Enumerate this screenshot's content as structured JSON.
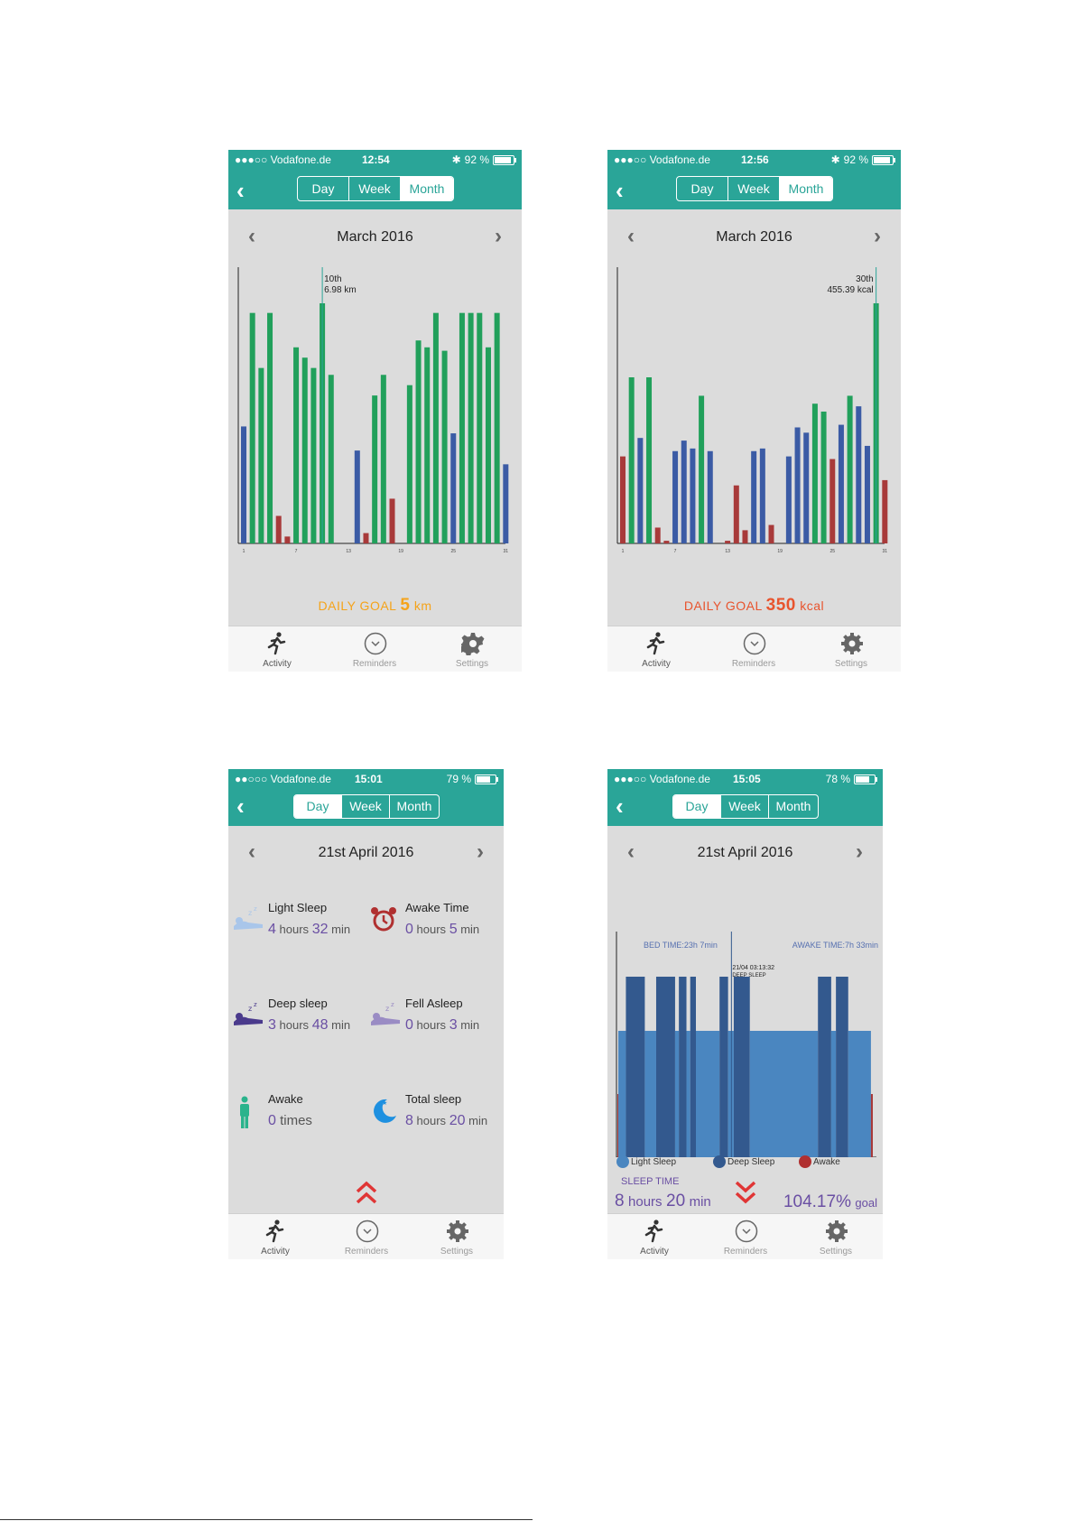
{
  "screens": [
    {
      "status": {
        "carrier": "●●●○○ Vodafone.de",
        "time": "12:54",
        "battery": "92 %",
        "battery_level": 0.92
      },
      "tabs": [
        "Day",
        "Week",
        "Month"
      ],
      "active_tab": "Month",
      "date": "March 2016",
      "tooltip": {
        "line1": "10th",
        "line2": "6.98 km"
      },
      "goal": {
        "label": "DAILY GOAL",
        "value": "5",
        "unit": "km"
      },
      "tabbar": [
        "Activity",
        "Reminders",
        "Settings"
      ]
    },
    {
      "status": {
        "carrier": "●●●○○ Vodafone.de",
        "time": "12:56",
        "battery": "92 %",
        "battery_level": 0.92
      },
      "tabs": [
        "Day",
        "Week",
        "Month"
      ],
      "active_tab": "Month",
      "date": "March 2016",
      "tooltip": {
        "line1": "30th",
        "line2": "455.39 kcal"
      },
      "goal": {
        "label": "DAILY GOAL",
        "value": "350",
        "unit": "kcal"
      },
      "tabbar": [
        "Activity",
        "Reminders",
        "Settings"
      ]
    },
    {
      "status": {
        "carrier": "●●○○○ Vodafone.de",
        "time": "15:01",
        "battery": "79 %",
        "battery_level": 0.79
      },
      "tabs": [
        "Day",
        "Week",
        "Month"
      ],
      "active_tab": "Day",
      "date": "21st April 2016",
      "items": [
        {
          "title": "Light Sleep",
          "n1": "4",
          "u1": "hours",
          "n2": "32",
          "u2": "min",
          "icon": "light-sleep-icon"
        },
        {
          "title": "Awake Time",
          "n1": "0",
          "u1": "hours",
          "n2": "5",
          "u2": "min",
          "icon": "alarm-clock-icon"
        },
        {
          "title": "Deep sleep",
          "n1": "3",
          "u1": "hours",
          "n2": "48",
          "u2": "min",
          "icon": "deep-sleep-icon"
        },
        {
          "title": "Fell Asleep",
          "n1": "0",
          "u1": "hours",
          "n2": "3",
          "u2": "min",
          "icon": "fell-asleep-icon"
        },
        {
          "title": "Awake",
          "n1": "0",
          "u1": "times",
          "n2": "",
          "u2": "",
          "icon": "standing-person-icon"
        },
        {
          "title": "Total sleep",
          "n1": "8",
          "u1": "hours",
          "n2": "20",
          "u2": "min",
          "icon": "moon-icon"
        }
      ],
      "expand_icon": "double-chevron-up-icon",
      "tabbar": [
        "Activity",
        "Reminders",
        "Settings"
      ]
    },
    {
      "status": {
        "carrier": "●●●○○ Vodafone.de",
        "time": "15:05",
        "battery": "78 %",
        "battery_level": 0.78
      },
      "tabs": [
        "Day",
        "Week",
        "Month"
      ],
      "active_tab": "Day",
      "date": "21st April 2016",
      "bed_time": "BED TIME:23h 7min",
      "awake_time": "AWAKE TIME:7h 33min",
      "tooltip": {
        "line1": "21/04 03:13:32",
        "line2": "DEEP SLEEP"
      },
      "legend": [
        "Light Sleep",
        "Deep Sleep",
        "Awake"
      ],
      "sleep_time_label": "SLEEP TIME",
      "sleep_hours": "8",
      "hours_unit": "hours",
      "sleep_min": "20",
      "min_unit": "min",
      "goal_pct": "104.17%",
      "goal_label": "goal",
      "collapse_icon": "double-chevron-down-icon",
      "tabbar": [
        "Activity",
        "Reminders",
        "Settings"
      ]
    }
  ],
  "colors": {
    "teal": "#2aa598",
    "green": "#21a05b",
    "blue": "#3b5ba5",
    "red": "#a83a3a",
    "orange": "#f5a31a",
    "goal_red": "#e8542e",
    "purple": "#6a4fa3",
    "light_sleep": "#4a86c0",
    "deep_sleep": "#33598e"
  },
  "chart_data": [
    {
      "type": "bar",
      "title": "",
      "x": [
        1,
        2,
        3,
        4,
        5,
        6,
        7,
        8,
        9,
        10,
        11,
        12,
        13,
        14,
        15,
        16,
        17,
        18,
        19,
        20,
        21,
        22,
        23,
        24,
        25,
        26,
        27,
        28,
        29,
        30,
        31
      ],
      "xticks": [
        "1",
        "7",
        "13",
        "19",
        "25",
        "31"
      ],
      "values": [
        3.4,
        6.7,
        5.1,
        6.7,
        0.8,
        0.2,
        5.7,
        5.4,
        5.1,
        6.98,
        4.9,
        0,
        0,
        2.7,
        0.3,
        4.3,
        4.9,
        1.3,
        0,
        4.6,
        5.9,
        5.7,
        6.7,
        5.6,
        3.2,
        6.7,
        6.7,
        6.7,
        5.7,
        6.7,
        2.3
      ],
      "bar_colors": [
        "blue",
        "green",
        "green",
        "green",
        "red",
        "red",
        "green",
        "green",
        "green",
        "green",
        "green",
        "none",
        "red",
        "blue",
        "red",
        "green",
        "green",
        "red",
        "none",
        "green",
        "green",
        "green",
        "green",
        "green",
        "blue",
        "green",
        "green",
        "green",
        "green",
        "green",
        "blue"
      ],
      "unit": "km",
      "goal": 5
    },
    {
      "type": "bar",
      "title": "",
      "x": [
        1,
        2,
        3,
        4,
        5,
        6,
        7,
        8,
        9,
        10,
        11,
        12,
        13,
        14,
        15,
        16,
        17,
        18,
        19,
        20,
        21,
        22,
        23,
        24,
        25,
        26,
        27,
        28,
        29,
        30,
        31
      ],
      "xticks": [
        "1",
        "7",
        "13",
        "19",
        "25",
        "31"
      ],
      "values": [
        165,
        315,
        200,
        315,
        30,
        5,
        175,
        195,
        180,
        280,
        175,
        0,
        5,
        110,
        25,
        175,
        180,
        35,
        0,
        165,
        220,
        210,
        265,
        250,
        160,
        225,
        280,
        260,
        185,
        455.39,
        120
      ],
      "bar_colors": [
        "red",
        "green",
        "blue",
        "green",
        "red",
        "red",
        "blue",
        "blue",
        "blue",
        "green",
        "blue",
        "none",
        "red",
        "red",
        "red",
        "blue",
        "blue",
        "red",
        "none",
        "blue",
        "blue",
        "blue",
        "green",
        "green",
        "red",
        "blue",
        "green",
        "blue",
        "blue",
        "green",
        "red"
      ],
      "unit": "kcal",
      "goal": 350
    },
    {
      "type": "bar",
      "title": "",
      "segments": [
        {
          "stage": "awake",
          "level": 0.3
        },
        {
          "stage": "light",
          "level": 0.6
        },
        {
          "stage": "deep",
          "level": 1.0
        },
        {
          "stage": "light",
          "level": 0.6
        },
        {
          "stage": "deep",
          "level": 1.0
        },
        {
          "stage": "light",
          "level": 0.6
        },
        {
          "stage": "deep",
          "level": 1.0
        },
        {
          "stage": "light",
          "level": 0.6
        },
        {
          "stage": "deep",
          "level": 1.0
        },
        {
          "stage": "light",
          "level": 0.6
        },
        {
          "stage": "deep",
          "level": 1.0
        },
        {
          "stage": "light",
          "level": 0.6
        },
        {
          "stage": "deep",
          "level": 1.0
        },
        {
          "stage": "light",
          "level": 0.6
        },
        {
          "stage": "deep",
          "level": 1.0
        },
        {
          "stage": "light",
          "level": 0.6
        },
        {
          "stage": "deep",
          "level": 1.0
        },
        {
          "stage": "light",
          "level": 0.6
        },
        {
          "stage": "awake",
          "level": 0.3
        }
      ],
      "durations": [
        1,
        8,
        20,
        12,
        20,
        4,
        8,
        4,
        6,
        25,
        9,
        6,
        17,
        72,
        14,
        5,
        13,
        24,
        2
      ]
    }
  ]
}
